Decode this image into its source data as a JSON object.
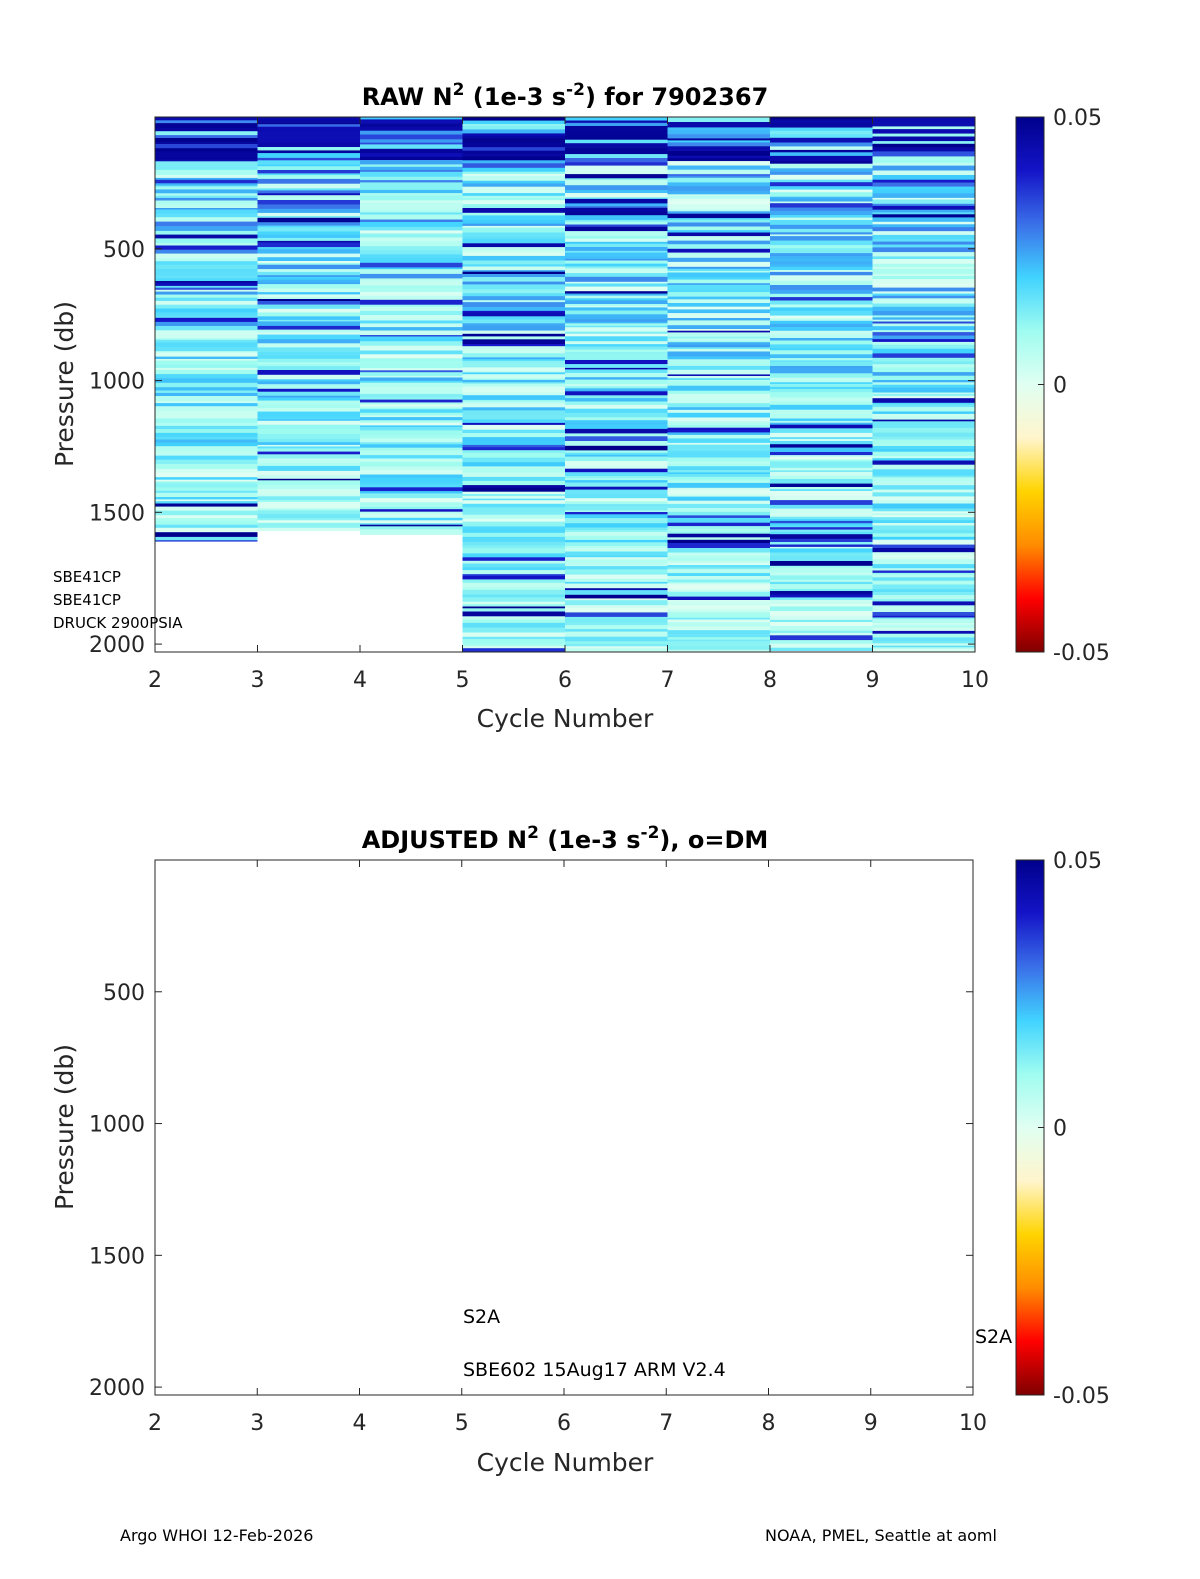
{
  "colors": {
    "colormap": [
      "#7f0000",
      "#ff0000",
      "#ff8c00",
      "#ffd400",
      "#fff5cc",
      "#e0fff2",
      "#9ffcf0",
      "#41d3ff",
      "#3a6fe8",
      "#1414c8",
      "#00008c"
    ]
  },
  "footer": {
    "left": "Argo WHOI 12-Feb-2026",
    "right": "NOAA, PMEL, Seattle at aoml"
  },
  "chart_data": [
    {
      "type": "heatmap",
      "title_parts": {
        "main": "RAW N",
        "exp": "2",
        "mid": " (1e-3 s",
        "exp2": "-2",
        "end": ") for 7902367"
      },
      "xlabel": "Cycle Number",
      "ylabel": "Pressure (db)",
      "xlim": [
        2,
        10
      ],
      "ylim": [
        0,
        2030
      ],
      "y_reversed": true,
      "xticks": [
        2,
        3,
        4,
        5,
        6,
        7,
        8,
        9,
        10
      ],
      "yticks": [
        500,
        1000,
        1500,
        2000
      ],
      "colorbar": {
        "min": -0.05,
        "max": 0.05,
        "tick_labels": [
          "0.05",
          "0",
          "-0.05"
        ],
        "tick_values": [
          0.05,
          0,
          -0.05
        ]
      },
      "columns": [
        {
          "x_start": 2,
          "x_end": 3,
          "max_pressure": 1610
        },
        {
          "x_start": 3,
          "x_end": 4,
          "max_pressure": 1570
        },
        {
          "x_start": 4,
          "x_end": 5,
          "max_pressure": 1585
        },
        {
          "x_start": 5,
          "x_end": 6,
          "max_pressure": 2030
        },
        {
          "x_start": 6,
          "x_end": 7,
          "max_pressure": 2030
        },
        {
          "x_start": 7,
          "x_end": 8,
          "max_pressure": 2030
        },
        {
          "x_start": 8,
          "x_end": 9,
          "max_pressure": 2025
        },
        {
          "x_start": 9,
          "x_end": 10,
          "max_pressure": 2030
        }
      ],
      "annotations": [
        "SBE41CP",
        "SBE41CP",
        "DRUCK 2900PSIA"
      ]
    },
    {
      "type": "heatmap",
      "title_parts": {
        "main": "ADJUSTED N",
        "exp": "2",
        "mid": " (1e-3 s",
        "exp2": "-2",
        "end": "), o=DM"
      },
      "xlabel": "Cycle Number",
      "ylabel": "Pressure (db)",
      "xlim": [
        2,
        10
      ],
      "ylim": [
        0,
        2030
      ],
      "y_reversed": true,
      "xticks": [
        2,
        3,
        4,
        5,
        6,
        7,
        8,
        9,
        10
      ],
      "yticks": [
        500,
        1000,
        1500,
        2000
      ],
      "colorbar": {
        "min": -0.05,
        "max": 0.05,
        "tick_labels": [
          "0.05",
          "0",
          "-0.05"
        ],
        "tick_values": [
          0.05,
          0,
          -0.05
        ]
      },
      "columns": [],
      "annotations": [
        "S2A",
        "SBE602 15Aug17 ARM V2.4",
        "S2A"
      ]
    }
  ]
}
